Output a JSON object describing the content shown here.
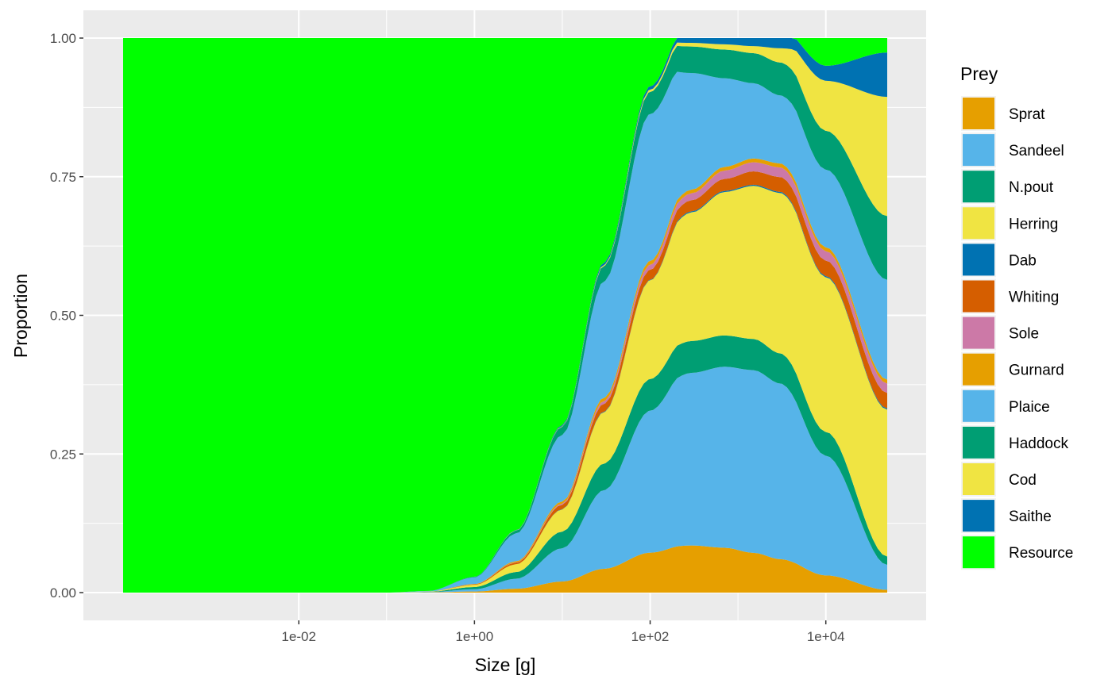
{
  "chart_data": {
    "type": "area",
    "stacked": true,
    "xlabel": "Size [g]",
    "ylabel": "Proportion",
    "x_scale": "log10",
    "xlim": [
      0.0001,
      50000
    ],
    "ylim": [
      0,
      1
    ],
    "x_ticks": [
      {
        "value": 0.01,
        "label": "1e-02"
      },
      {
        "value": 1,
        "label": "1e+00"
      },
      {
        "value": 100,
        "label": "1e+02"
      },
      {
        "value": 10000,
        "label": "1e+04"
      }
    ],
    "y_ticks": [
      {
        "value": 0,
        "label": "0.00"
      },
      {
        "value": 0.25,
        "label": "0.25"
      },
      {
        "value": 0.5,
        "label": "0.50"
      },
      {
        "value": 0.75,
        "label": "0.75"
      },
      {
        "value": 1,
        "label": "1.00"
      }
    ],
    "grid": true,
    "legend": {
      "title": "Prey",
      "position": "right"
    },
    "x": [
      0.0001,
      0.01,
      0.1,
      0.3,
      1,
      3,
      10,
      30,
      100,
      300,
      700,
      1500,
      3000,
      10000,
      50000
    ],
    "series": [
      {
        "name": "Sprat",
        "color": "#E69F00",
        "values": [
          0,
          0,
          0,
          0.0005,
          0.002,
          0.007,
          0.02,
          0.043,
          0.072,
          0.089,
          0.086,
          0.074,
          0.059,
          0.031,
          0.005
        ]
      },
      {
        "name": "Sandeel",
        "color": "#56B4E9",
        "values": [
          0,
          0,
          0,
          0.0005,
          0.004,
          0.018,
          0.06,
          0.142,
          0.256,
          0.326,
          0.347,
          0.34,
          0.31,
          0.216,
          0.045
        ]
      },
      {
        "name": "N.pout",
        "color": "#009E73",
        "values": [
          0,
          0,
          0,
          0.0005,
          0.004,
          0.012,
          0.03,
          0.048,
          0.057,
          0.06,
          0.06,
          0.058,
          0.053,
          0.043,
          0.015
        ]
      },
      {
        "name": "Herring",
        "color": "#F0E442",
        "values": [
          0,
          0,
          0,
          0.0005,
          0.004,
          0.014,
          0.04,
          0.093,
          0.178,
          0.243,
          0.275,
          0.285,
          0.283,
          0.279,
          0.265
        ]
      },
      {
        "name": "Dab",
        "color": "#0072B2",
        "values": [
          0,
          0,
          0,
          0,
          0,
          0,
          0.0005,
          0.001,
          0.001,
          0.002,
          0.002,
          0.002,
          0.002,
          0.002,
          0.002
        ]
      },
      {
        "name": "Whiting",
        "color": "#D55E00",
        "values": [
          0,
          0,
          0,
          0,
          0.001,
          0.003,
          0.008,
          0.014,
          0.018,
          0.021,
          0.023,
          0.025,
          0.026,
          0.028,
          0.028
        ]
      },
      {
        "name": "Sole",
        "color": "#CC79A7",
        "values": [
          0,
          0,
          0,
          0,
          0,
          0.0005,
          0.002,
          0.005,
          0.009,
          0.013,
          0.016,
          0.017,
          0.017,
          0.017,
          0.017
        ]
      },
      {
        "name": "Gurnard",
        "color": "#E69F00",
        "values": [
          0,
          0,
          0,
          0,
          0.0005,
          0.002,
          0.004,
          0.006,
          0.007,
          0.007,
          0.007,
          0.007,
          0.007,
          0.007,
          0.007
        ]
      },
      {
        "name": "Plaice",
        "color": "#56B4E9",
        "values": [
          0,
          0,
          0,
          0.001,
          0.012,
          0.05,
          0.12,
          0.21,
          0.265,
          0.22,
          0.17,
          0.14,
          0.12,
          0.14,
          0.18
        ]
      },
      {
        "name": "Haddock",
        "color": "#009E73",
        "values": [
          0,
          0,
          0,
          0,
          0.001,
          0.005,
          0.015,
          0.028,
          0.04,
          0.05,
          0.055,
          0.056,
          0.058,
          0.07,
          0.115
        ]
      },
      {
        "name": "Cod",
        "color": "#F0E442",
        "values": [
          0,
          0,
          0,
          0,
          0,
          0.0005,
          0.001,
          0.002,
          0.004,
          0.007,
          0.01,
          0.013,
          0.025,
          0.09,
          0.215
        ]
      },
      {
        "name": "Saithe",
        "color": "#0072B2",
        "values": [
          0,
          0,
          0,
          0,
          0,
          0.0005,
          0.002,
          0.004,
          0.006,
          0.009,
          0.012,
          0.015,
          0.018,
          0.027,
          0.08
        ]
      },
      {
        "name": "Resource",
        "color": "#00FF00",
        "values": [
          1,
          1,
          1,
          0.997,
          0.9715,
          0.887,
          0.6975,
          0.404,
          0.087,
          -0.047,
          -0.063,
          -0.052,
          -0.018,
          0.05,
          0.026
        ]
      }
    ]
  }
}
